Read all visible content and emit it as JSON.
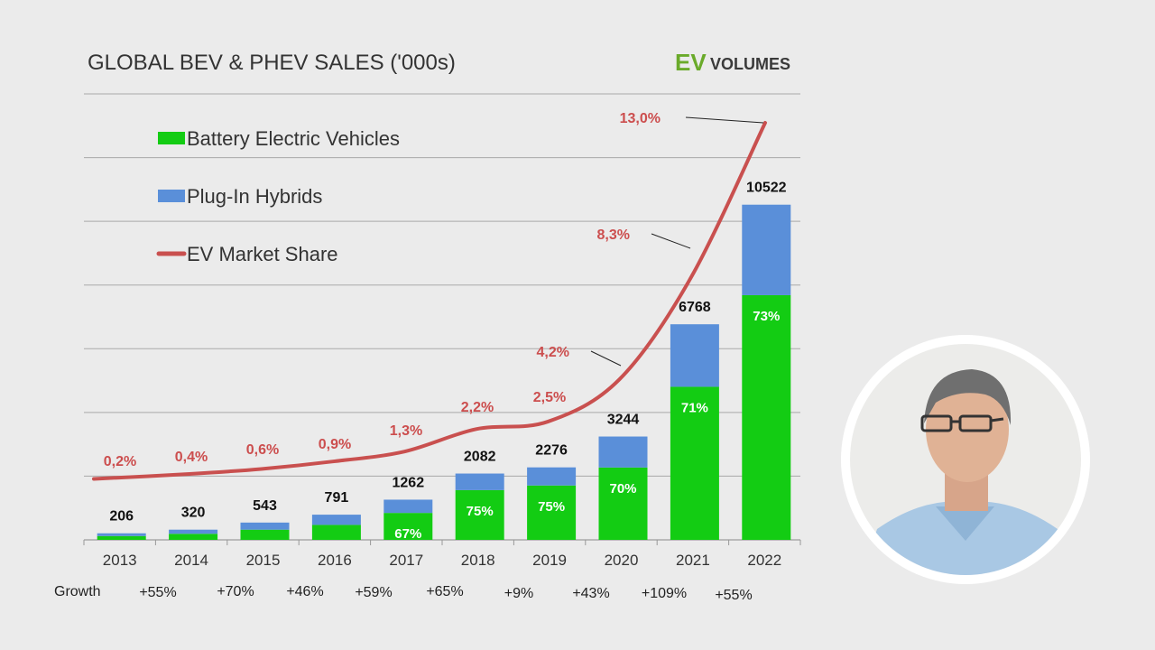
{
  "title": "GLOBAL BEV & PHEV SALES ('000s)",
  "logo": {
    "ev": "EV",
    "volumes": "VOLUMES",
    "ev_color": "#6aaa2a"
  },
  "colors": {
    "bev": "#13cc13",
    "phev": "#5a8fd9",
    "share_line": "#c9504f",
    "grid": "#a9a9a9"
  },
  "legend": [
    {
      "label": "Battery Electric Vehicles",
      "kind": "bev"
    },
    {
      "label": "Plug-In Hybrids",
      "kind": "phev"
    },
    {
      "label": "EV Market Share",
      "kind": "line"
    }
  ],
  "growth_label": "Growth",
  "chart_data": {
    "type": "bar",
    "stacked": true,
    "title": "GLOBAL BEV & PHEV SALES ('000s)",
    "categories": [
      "2013",
      "2014",
      "2015",
      "2016",
      "2017",
      "2018",
      "2019",
      "2020",
      "2021",
      "2022"
    ],
    "ylim": [
      0,
      14000
    ],
    "grid": true,
    "legend_position": "top-left",
    "series": [
      {
        "name": "Battery Electric Vehicles",
        "values": [
          120,
          190,
          320,
          470,
          846,
          1562,
          1707,
          2271,
          4805,
          7681
        ]
      },
      {
        "name": "Plug-In Hybrids",
        "values": [
          86,
          130,
          223,
          321,
          416,
          520,
          569,
          973,
          1963,
          2841
        ]
      }
    ],
    "totals": [
      "206",
      "320",
      "543",
      "791",
      "1262",
      "2082",
      "2276",
      "3244",
      "6768",
      "10522"
    ],
    "bev_share_labels": [
      "",
      "",
      "",
      "",
      "67%",
      "75%",
      "75%",
      "70%",
      "71%",
      "73%"
    ],
    "market_share": {
      "name": "EV Market Share",
      "values": [
        0.2,
        0.4,
        0.6,
        0.9,
        1.3,
        2.2,
        2.5,
        4.2,
        8.3,
        13.0
      ],
      "labels": [
        "0,2%",
        "0,4%",
        "0,6%",
        "0,9%",
        "1,3%",
        "2,2%",
        "2,5%",
        "4,2%",
        "8,3%",
        "13,0%"
      ],
      "ylim": [
        0,
        14
      ]
    },
    "growth": [
      "+55%",
      "+70%",
      "+46%",
      "+59%",
      "+65%",
      "+9%",
      "+43%",
      "+109%",
      "+55%"
    ]
  }
}
